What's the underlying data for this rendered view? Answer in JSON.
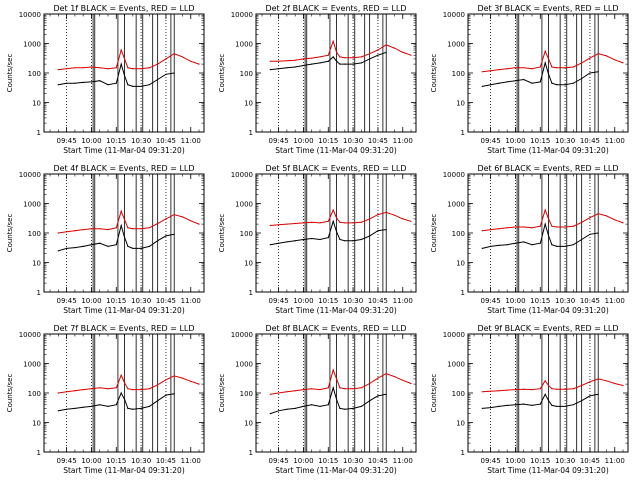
{
  "figure": {
    "y_ticks": [
      "1",
      "10",
      "100",
      "1000",
      "10000"
    ],
    "x_ticks": [
      "09:45",
      "10:00",
      "10:15",
      "10:30",
      "10:45",
      "11:00"
    ]
  },
  "chart_data": [
    {
      "type": "line",
      "title": "Det 1f BLACK = Events, RED = LLD",
      "xlabel": "Start Time (11-Mar-04 09:31:20)",
      "ylabel": "Counts/sec",
      "yscale": "log",
      "ylim": [
        1,
        10000
      ],
      "xlim": [
        "09:31:20",
        "11:08:00"
      ],
      "x_ticks": [
        "09:45",
        "10:00",
        "10:15",
        "10:30",
        "10:45",
        "11:00"
      ],
      "dotted_vertical_lines": [
        "09:45",
        "10:00",
        "10:30",
        "10:45"
      ],
      "solid_vertical_lines": [
        "10:01",
        "10:02",
        "10:16",
        "10:20",
        "10:27",
        "10:31",
        "10:37",
        "10:40",
        "10:48",
        "10:50"
      ],
      "x": [
        "09:40",
        "09:45",
        "09:50",
        "09:55",
        "10:00",
        "10:05",
        "10:10",
        "10:15",
        "10:18",
        "10:20",
        "10:22",
        "10:25",
        "10:30",
        "10:35",
        "10:40",
        "10:45",
        "10:50",
        "10:55",
        "11:00",
        "11:05"
      ],
      "series": [
        {
          "name": "Events",
          "color": "#000000",
          "values": [
            40,
            45,
            45,
            48,
            50,
            55,
            40,
            45,
            200,
            80,
            40,
            35,
            35,
            40,
            60,
            90,
            100,
            null,
            null,
            null
          ]
        },
        {
          "name": "LLD",
          "color": "#dd0000",
          "values": [
            130,
            140,
            150,
            150,
            160,
            150,
            140,
            150,
            600,
            300,
            150,
            140,
            140,
            150,
            200,
            300,
            450,
            350,
            250,
            200
          ]
        }
      ]
    },
    {
      "type": "line",
      "title": "Det 2f BLACK = Events, RED = LLD",
      "xlabel": "Start Time (11-Mar-04 09:31:20)",
      "ylabel": "Counts/sec",
      "yscale": "log",
      "ylim": [
        1,
        10000
      ],
      "xlim": [
        "09:31:20",
        "11:08:00"
      ],
      "x_ticks": [
        "09:45",
        "10:00",
        "10:15",
        "10:30",
        "10:45",
        "11:00"
      ],
      "dotted_vertical_lines": [
        "09:45",
        "10:00",
        "10:30",
        "10:45"
      ],
      "solid_vertical_lines": [
        "10:01",
        "10:02",
        "10:16",
        "10:20",
        "10:27",
        "10:31",
        "10:37",
        "10:40",
        "10:48",
        "10:50"
      ],
      "x": [
        "09:40",
        "09:45",
        "09:50",
        "09:55",
        "10:00",
        "10:05",
        "10:10",
        "10:15",
        "10:18",
        "10:20",
        "10:22",
        "10:25",
        "10:30",
        "10:35",
        "10:40",
        "10:45",
        "10:50",
        "10:55",
        "11:00",
        "11:05"
      ],
      "series": [
        {
          "name": "Events",
          "color": "#000000",
          "values": [
            130,
            140,
            150,
            160,
            180,
            200,
            220,
            250,
            350,
            250,
            200,
            200,
            200,
            220,
            300,
            400,
            500,
            null,
            null,
            null
          ]
        },
        {
          "name": "LLD",
          "color": "#dd0000",
          "values": [
            250,
            250,
            260,
            270,
            300,
            320,
            350,
            400,
            1200,
            500,
            350,
            330,
            330,
            350,
            450,
            600,
            900,
            700,
            500,
            400
          ]
        }
      ]
    },
    {
      "type": "line",
      "title": "Det 3f BLACK = Events, RED = LLD",
      "xlabel": "Start Time (11-Mar-04 09:31:20)",
      "ylabel": "Counts/sec",
      "yscale": "log",
      "ylim": [
        1,
        10000
      ],
      "xlim": [
        "09:31:20",
        "11:08:00"
      ],
      "x_ticks": [
        "09:45",
        "10:00",
        "10:15",
        "10:30",
        "10:45",
        "11:00"
      ],
      "dotted_vertical_lines": [
        "09:45",
        "10:00",
        "10:30",
        "10:45"
      ],
      "solid_vertical_lines": [
        "10:01",
        "10:02",
        "10:16",
        "10:20",
        "10:27",
        "10:31",
        "10:37",
        "10:40",
        "10:48",
        "10:50"
      ],
      "x": [
        "09:40",
        "09:45",
        "09:50",
        "09:55",
        "10:00",
        "10:05",
        "10:10",
        "10:15",
        "10:18",
        "10:20",
        "10:22",
        "10:25",
        "10:30",
        "10:35",
        "10:40",
        "10:45",
        "10:50",
        "10:55",
        "11:00",
        "11:05"
      ],
      "series": [
        {
          "name": "Events",
          "color": "#000000",
          "values": [
            35,
            40,
            45,
            50,
            55,
            60,
            45,
            50,
            220,
            90,
            45,
            40,
            40,
            45,
            65,
            100,
            110,
            null,
            null,
            null
          ]
        },
        {
          "name": "LLD",
          "color": "#dd0000",
          "values": [
            110,
            120,
            130,
            140,
            150,
            150,
            140,
            160,
            550,
            300,
            160,
            150,
            150,
            160,
            220,
            320,
            450,
            380,
            280,
            220
          ]
        }
      ]
    },
    {
      "type": "line",
      "title": "Det 4f BLACK = Events, RED = LLD",
      "xlabel": "Start Time (11-Mar-04 09:31:20)",
      "ylabel": "Counts/sec",
      "yscale": "log",
      "ylim": [
        1,
        10000
      ],
      "xlim": [
        "09:31:20",
        "11:08:00"
      ],
      "x_ticks": [
        "09:45",
        "10:00",
        "10:15",
        "10:30",
        "10:45",
        "11:00"
      ],
      "dotted_vertical_lines": [
        "09:45",
        "10:00",
        "10:30",
        "10:45"
      ],
      "solid_vertical_lines": [
        "10:01",
        "10:02",
        "10:16",
        "10:20",
        "10:27",
        "10:31",
        "10:37",
        "10:40",
        "10:48",
        "10:50"
      ],
      "x": [
        "09:40",
        "09:45",
        "09:50",
        "09:55",
        "10:00",
        "10:05",
        "10:10",
        "10:15",
        "10:18",
        "10:20",
        "10:22",
        "10:25",
        "10:30",
        "10:35",
        "10:40",
        "10:45",
        "10:50",
        "10:55",
        "11:00",
        "11:05"
      ],
      "series": [
        {
          "name": "Events",
          "color": "#000000",
          "values": [
            25,
            30,
            32,
            35,
            40,
            45,
            35,
            40,
            180,
            70,
            35,
            30,
            30,
            35,
            55,
            80,
            90,
            null,
            null,
            null
          ]
        },
        {
          "name": "LLD",
          "color": "#dd0000",
          "values": [
            100,
            110,
            120,
            130,
            140,
            140,
            130,
            150,
            550,
            280,
            150,
            140,
            140,
            150,
            210,
            300,
            420,
            350,
            260,
            200
          ]
        }
      ]
    },
    {
      "type": "line",
      "title": "Det 5f BLACK = Events, RED = LLD",
      "xlabel": "Start Time (11-Mar-04 09:31:20)",
      "ylabel": "Counts/sec",
      "yscale": "log",
      "ylim": [
        1,
        10000
      ],
      "xlim": [
        "09:31:20",
        "11:08:00"
      ],
      "x_ticks": [
        "09:45",
        "10:00",
        "10:15",
        "10:30",
        "10:45",
        "11:00"
      ],
      "dotted_vertical_lines": [
        "09:45",
        "10:00",
        "10:30",
        "10:45"
      ],
      "solid_vertical_lines": [
        "10:01",
        "10:02",
        "10:16",
        "10:20",
        "10:27",
        "10:31",
        "10:37",
        "10:40",
        "10:48",
        "10:50"
      ],
      "x": [
        "09:40",
        "09:45",
        "09:50",
        "09:55",
        "10:00",
        "10:05",
        "10:10",
        "10:15",
        "10:18",
        "10:20",
        "10:22",
        "10:25",
        "10:30",
        "10:35",
        "10:40",
        "10:45",
        "10:50",
        "10:55",
        "11:00",
        "11:05"
      ],
      "series": [
        {
          "name": "Events",
          "color": "#000000",
          "values": [
            40,
            45,
            50,
            55,
            60,
            65,
            60,
            70,
            250,
            110,
            60,
            55,
            55,
            60,
            80,
            120,
            130,
            null,
            null,
            null
          ]
        },
        {
          "name": "LLD",
          "color": "#dd0000",
          "values": [
            180,
            190,
            200,
            210,
            220,
            230,
            220,
            250,
            600,
            320,
            230,
            220,
            220,
            230,
            300,
            420,
            500,
            400,
            300,
            250
          ]
        }
      ]
    },
    {
      "type": "line",
      "title": "Det 6f BLACK = Events, RED = LLD",
      "xlabel": "Start Time (11-Mar-04 09:31:20)",
      "ylabel": "Counts/sec",
      "yscale": "log",
      "ylim": [
        1,
        10000
      ],
      "xlim": [
        "09:31:20",
        "11:08:00"
      ],
      "x_ticks": [
        "09:45",
        "10:00",
        "10:15",
        "10:30",
        "10:45",
        "11:00"
      ],
      "dotted_vertical_lines": [
        "09:45",
        "10:00",
        "10:30",
        "10:45"
      ],
      "solid_vertical_lines": [
        "10:01",
        "10:02",
        "10:16",
        "10:20",
        "10:27",
        "10:31",
        "10:37",
        "10:40",
        "10:48",
        "10:50"
      ],
      "x": [
        "09:40",
        "09:45",
        "09:50",
        "09:55",
        "10:00",
        "10:05",
        "10:10",
        "10:15",
        "10:18",
        "10:20",
        "10:22",
        "10:25",
        "10:30",
        "10:35",
        "10:40",
        "10:45",
        "10:50",
        "10:55",
        "11:00",
        "11:05"
      ],
      "series": [
        {
          "name": "Events",
          "color": "#000000",
          "values": [
            30,
            35,
            38,
            40,
            45,
            50,
            40,
            45,
            200,
            80,
            40,
            35,
            35,
            40,
            60,
            90,
            100,
            null,
            null,
            null
          ]
        },
        {
          "name": "LLD",
          "color": "#dd0000",
          "values": [
            120,
            130,
            140,
            150,
            160,
            160,
            150,
            170,
            600,
            300,
            170,
            160,
            160,
            170,
            230,
            330,
            450,
            380,
            280,
            220
          ]
        }
      ]
    },
    {
      "type": "line",
      "title": "Det 7f BLACK = Events, RED = LLD",
      "xlabel": "Start Time (11-Mar-04 09:31:20)",
      "ylabel": "Counts/sec",
      "yscale": "log",
      "ylim": [
        1,
        10000
      ],
      "xlim": [
        "09:31:20",
        "11:08:00"
      ],
      "x_ticks": [
        "09:45",
        "10:00",
        "10:15",
        "10:30",
        "10:45",
        "11:00"
      ],
      "dotted_vertical_lines": [
        "09:45",
        "10:00",
        "10:30",
        "10:45"
      ],
      "solid_vertical_lines": [
        "10:01",
        "10:02",
        "10:16",
        "10:20",
        "10:27",
        "10:31",
        "10:37",
        "10:40",
        "10:48",
        "10:50"
      ],
      "x": [
        "09:40",
        "09:45",
        "09:50",
        "09:55",
        "10:00",
        "10:05",
        "10:10",
        "10:15",
        "10:18",
        "10:20",
        "10:22",
        "10:25",
        "10:30",
        "10:35",
        "10:40",
        "10:45",
        "10:50",
        "10:55",
        "11:00",
        "11:05"
      ],
      "series": [
        {
          "name": "Events",
          "color": "#000000",
          "values": [
            25,
            28,
            30,
            33,
            35,
            40,
            35,
            40,
            100,
            60,
            30,
            28,
            30,
            35,
            55,
            85,
            95,
            null,
            null,
            null
          ]
        },
        {
          "name": "LLD",
          "color": "#dd0000",
          "values": [
            100,
            110,
            120,
            130,
            140,
            150,
            140,
            150,
            400,
            220,
            140,
            130,
            130,
            140,
            190,
            280,
            380,
            320,
            250,
            200
          ]
        }
      ]
    },
    {
      "type": "line",
      "title": "Det 8f BLACK = Events, RED = LLD",
      "xlabel": "Start Time (11-Mar-04 09:31:20)",
      "ylabel": "Counts/sec",
      "yscale": "log",
      "ylim": [
        1,
        10000
      ],
      "xlim": [
        "09:31:20",
        "11:08:00"
      ],
      "x_ticks": [
        "09:45",
        "10:00",
        "10:15",
        "10:30",
        "10:45",
        "11:00"
      ],
      "dotted_vertical_lines": [
        "09:45",
        "10:00",
        "10:30",
        "10:45"
      ],
      "solid_vertical_lines": [
        "10:01",
        "10:02",
        "10:16",
        "10:20",
        "10:27",
        "10:31",
        "10:37",
        "10:40",
        "10:48",
        "10:50"
      ],
      "x": [
        "09:40",
        "09:45",
        "09:50",
        "09:55",
        "10:00",
        "10:05",
        "10:10",
        "10:15",
        "10:18",
        "10:20",
        "10:22",
        "10:25",
        "10:30",
        "10:35",
        "10:40",
        "10:45",
        "10:50",
        "10:55",
        "11:00",
        "11:05"
      ],
      "series": [
        {
          "name": "Events",
          "color": "#000000",
          "values": [
            20,
            25,
            28,
            30,
            35,
            40,
            35,
            40,
            150,
            60,
            30,
            28,
            30,
            35,
            55,
            80,
            90,
            null,
            null,
            null
          ]
        },
        {
          "name": "LLD",
          "color": "#dd0000",
          "values": [
            90,
            100,
            110,
            120,
            130,
            140,
            130,
            150,
            600,
            300,
            150,
            140,
            140,
            150,
            210,
            320,
            450,
            360,
            270,
            210
          ]
        }
      ]
    },
    {
      "type": "line",
      "title": "Det 9f BLACK = Events, RED = LLD",
      "xlabel": "Start Time (11-Mar-04 09:31:20)",
      "ylabel": "Counts/sec",
      "yscale": "log",
      "ylim": [
        1,
        10000
      ],
      "xlim": [
        "09:31:20",
        "11:08:00"
      ],
      "x_ticks": [
        "09:45",
        "10:00",
        "10:15",
        "10:30",
        "10:45",
        "11:00"
      ],
      "dotted_vertical_lines": [
        "09:45",
        "10:00",
        "10:30",
        "10:45"
      ],
      "solid_vertical_lines": [
        "10:01",
        "10:02",
        "10:16",
        "10:20",
        "10:27",
        "10:31",
        "10:37",
        "10:40",
        "10:48",
        "10:50"
      ],
      "x": [
        "09:40",
        "09:45",
        "09:50",
        "09:55",
        "10:00",
        "10:05",
        "10:10",
        "10:15",
        "10:18",
        "10:20",
        "10:22",
        "10:25",
        "10:30",
        "10:35",
        "10:40",
        "10:45",
        "10:50",
        "10:55",
        "11:00",
        "11:05"
      ],
      "series": [
        {
          "name": "Events",
          "color": "#000000",
          "values": [
            30,
            32,
            35,
            38,
            40,
            42,
            38,
            42,
            90,
            55,
            38,
            35,
            35,
            40,
            55,
            80,
            90,
            null,
            null,
            null
          ]
        },
        {
          "name": "LLD",
          "color": "#dd0000",
          "values": [
            110,
            115,
            120,
            125,
            130,
            135,
            130,
            140,
            260,
            180,
            140,
            135,
            135,
            140,
            180,
            240,
            300,
            260,
            210,
            180
          ]
        }
      ]
    }
  ]
}
